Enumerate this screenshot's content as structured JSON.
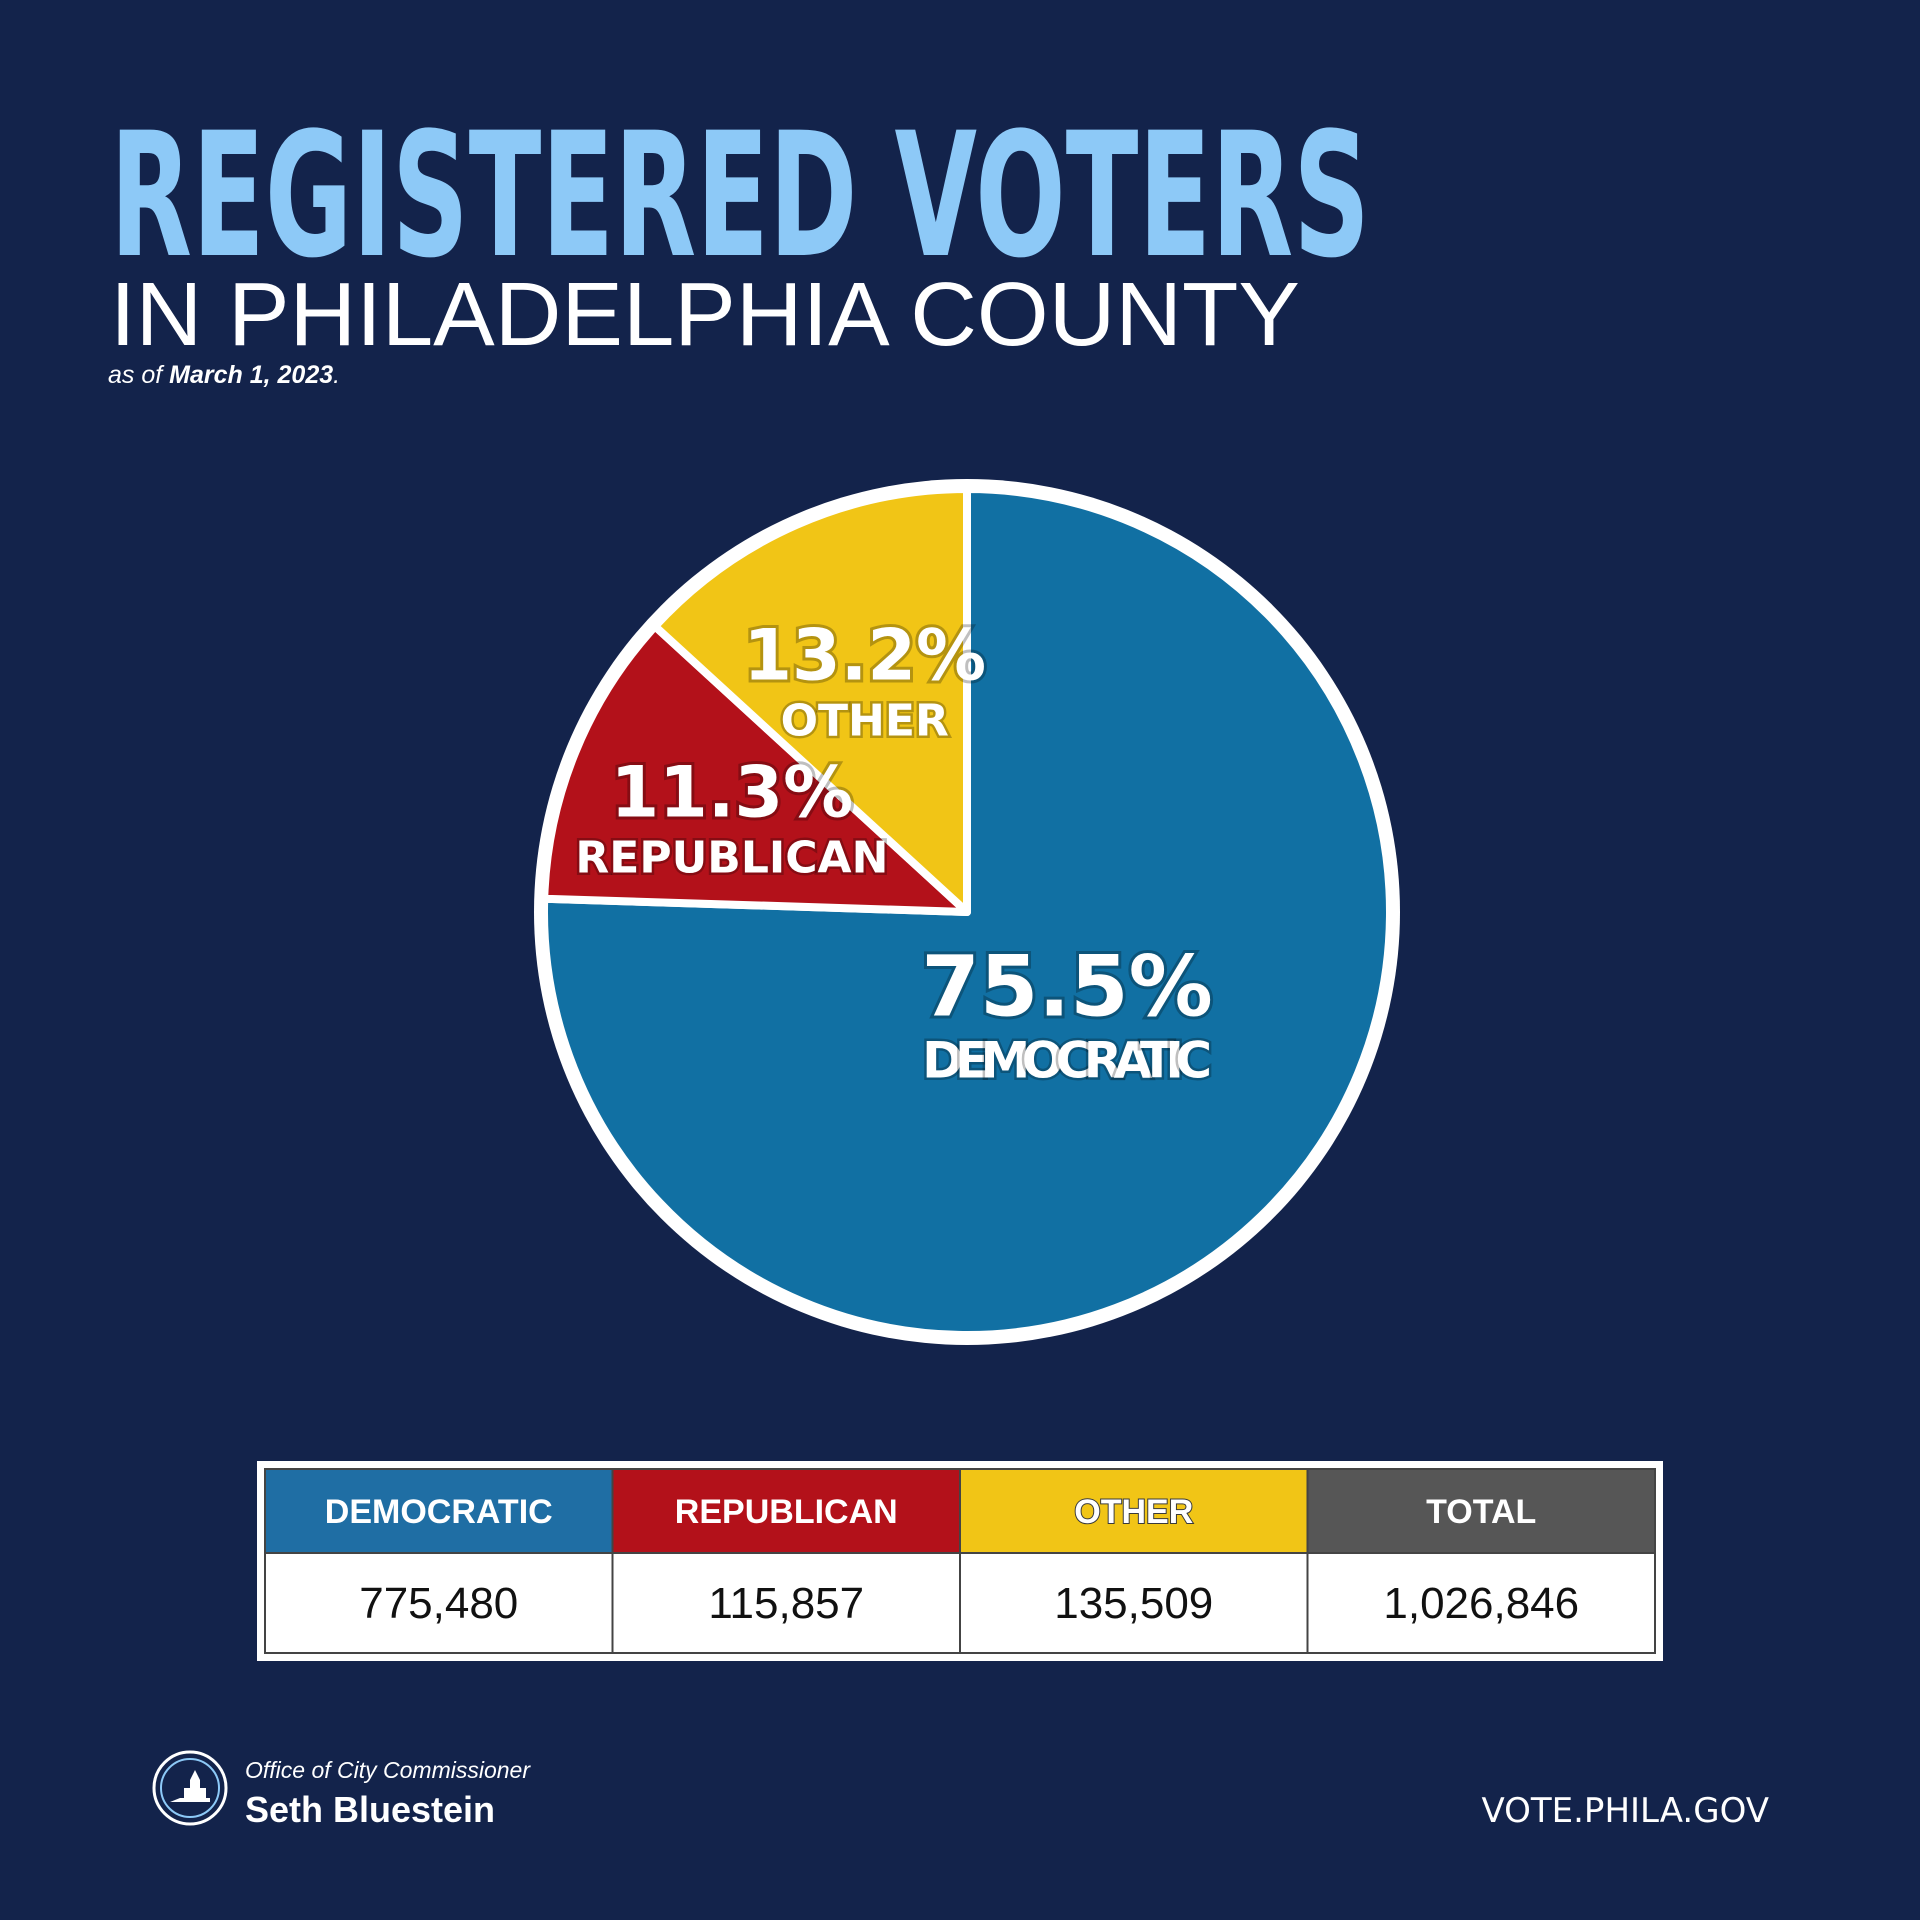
{
  "chart_data": {
    "type": "pie",
    "title": "REGISTERED VOTERS",
    "subtitle": "IN PHILADELPHIA COUNTY",
    "note_prefix": "as of",
    "note_date": "March 1, 2023",
    "note_suffix": ".",
    "categories": [
      "DEMOCRATIC",
      "REPUBLICAN",
      "OTHER"
    ],
    "values": [
      75.5,
      11.3,
      13.2
    ],
    "value_labels": [
      "75.5%",
      "11.3%",
      "13.2%"
    ],
    "colors": [
      "#1170a3",
      "#b3111a",
      "#f1c516"
    ]
  },
  "table": {
    "headers": [
      "DEMOCRATIC",
      "REPUBLICAN",
      "OTHER",
      "TOTAL"
    ],
    "header_colors": [
      "#1f6ea4",
      "#b3111a",
      "#f1c516",
      "#565656"
    ],
    "rows": [
      [
        "775,480",
        "115,857",
        "135,509",
        "1,026,846"
      ]
    ]
  },
  "footer": {
    "office": "Office of City Commissioner",
    "name": "Seth Bluestein",
    "url": "VOTE.PHILA.GOV"
  }
}
